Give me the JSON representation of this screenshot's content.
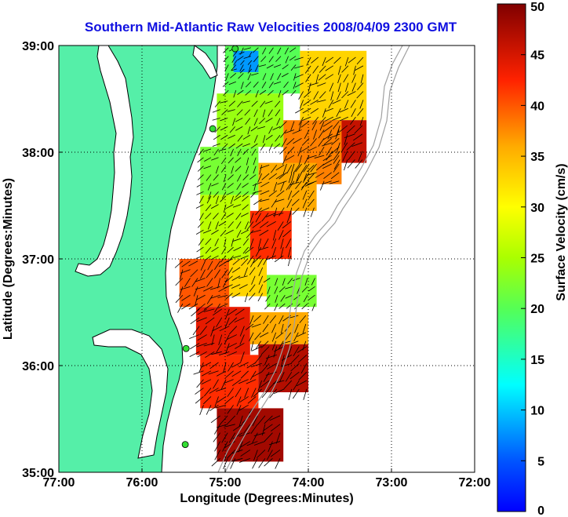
{
  "chart_data": {
    "type": "heatmap",
    "title": "Southern Mid-Atlantic Raw Velocities 2008/04/09 2300 GMT",
    "xlabel": "Longitude (Degrees:Minutes)",
    "ylabel": "Latitude (Degrees:Minutes)",
    "xlim": [
      -77,
      -72
    ],
    "ylim": [
      35,
      39
    ],
    "x_ticks": [
      {
        "value": -77,
        "label": "77:00"
      },
      {
        "value": -76,
        "label": "76:00"
      },
      {
        "value": -75,
        "label": "75:00"
      },
      {
        "value": -74,
        "label": "74:00"
      },
      {
        "value": -73,
        "label": "73:00"
      },
      {
        "value": -72,
        "label": "72:00"
      }
    ],
    "y_ticks": [
      {
        "value": 35,
        "label": "35:00"
      },
      {
        "value": 36,
        "label": "36:00"
      },
      {
        "value": 37,
        "label": "37:00"
      },
      {
        "value": 38,
        "label": "38:00"
      },
      {
        "value": 39,
        "label": "39:00"
      }
    ],
    "grid": true,
    "colorbar": {
      "label": "Surface Velocity (cm/s)",
      "range": [
        0,
        50
      ],
      "ticks": [
        "0",
        "5",
        "10",
        "15",
        "20",
        "25",
        "30",
        "35",
        "40",
        "45",
        "50"
      ],
      "colormap": "jet"
    },
    "land_color": "#55efa8",
    "stations": [
      {
        "lon": -74.88,
        "lat": 38.97
      },
      {
        "lon": -75.15,
        "lat": 38.22
      },
      {
        "lon": -75.47,
        "lat": 36.16
      },
      {
        "lon": -75.48,
        "lat": 35.26
      }
    ],
    "velocity_regions": [
      {
        "lon": [
          -75.0,
          -74.1
        ],
        "lat": [
          38.55,
          39.0
        ],
        "speed": 20
      },
      {
        "lon": [
          -74.9,
          -74.6
        ],
        "lat": [
          38.75,
          38.95
        ],
        "speed": 8
      },
      {
        "lon": [
          -74.1,
          -73.3
        ],
        "lat": [
          38.3,
          38.95
        ],
        "speed": 33
      },
      {
        "lon": [
          -73.75,
          -73.3
        ],
        "lat": [
          37.9,
          38.3
        ],
        "speed": 46
      },
      {
        "lon": [
          -75.1,
          -74.3
        ],
        "lat": [
          38.05,
          38.55
        ],
        "speed": 24
      },
      {
        "lon": [
          -74.3,
          -73.6
        ],
        "lat": [
          37.7,
          38.3
        ],
        "speed": 38
      },
      {
        "lon": [
          -75.3,
          -74.6
        ],
        "lat": [
          37.6,
          38.05
        ],
        "speed": 22
      },
      {
        "lon": [
          -74.6,
          -73.9
        ],
        "lat": [
          37.45,
          37.9
        ],
        "speed": 36
      },
      {
        "lon": [
          -75.3,
          -74.7
        ],
        "lat": [
          37.0,
          37.6
        ],
        "speed": 26
      },
      {
        "lon": [
          -74.7,
          -74.2
        ],
        "lat": [
          37.0,
          37.45
        ],
        "speed": 42
      },
      {
        "lon": [
          -75.55,
          -74.95
        ],
        "lat": [
          36.55,
          37.0
        ],
        "speed": 40
      },
      {
        "lon": [
          -74.95,
          -74.5
        ],
        "lat": [
          36.65,
          37.0
        ],
        "speed": 33
      },
      {
        "lon": [
          -74.5,
          -73.9
        ],
        "lat": [
          36.55,
          36.85
        ],
        "speed": 22
      },
      {
        "lon": [
          -75.35,
          -74.7
        ],
        "lat": [
          36.1,
          36.55
        ],
        "speed": 44
      },
      {
        "lon": [
          -74.7,
          -74.0
        ],
        "lat": [
          36.2,
          36.5
        ],
        "speed": 36
      },
      {
        "lon": [
          -75.3,
          -74.6
        ],
        "lat": [
          35.6,
          36.1
        ],
        "speed": 42
      },
      {
        "lon": [
          -74.6,
          -74.0
        ],
        "lat": [
          35.75,
          36.2
        ],
        "speed": 47
      },
      {
        "lon": [
          -75.1,
          -74.3
        ],
        "lat": [
          35.1,
          35.6
        ],
        "speed": 48
      }
    ]
  }
}
